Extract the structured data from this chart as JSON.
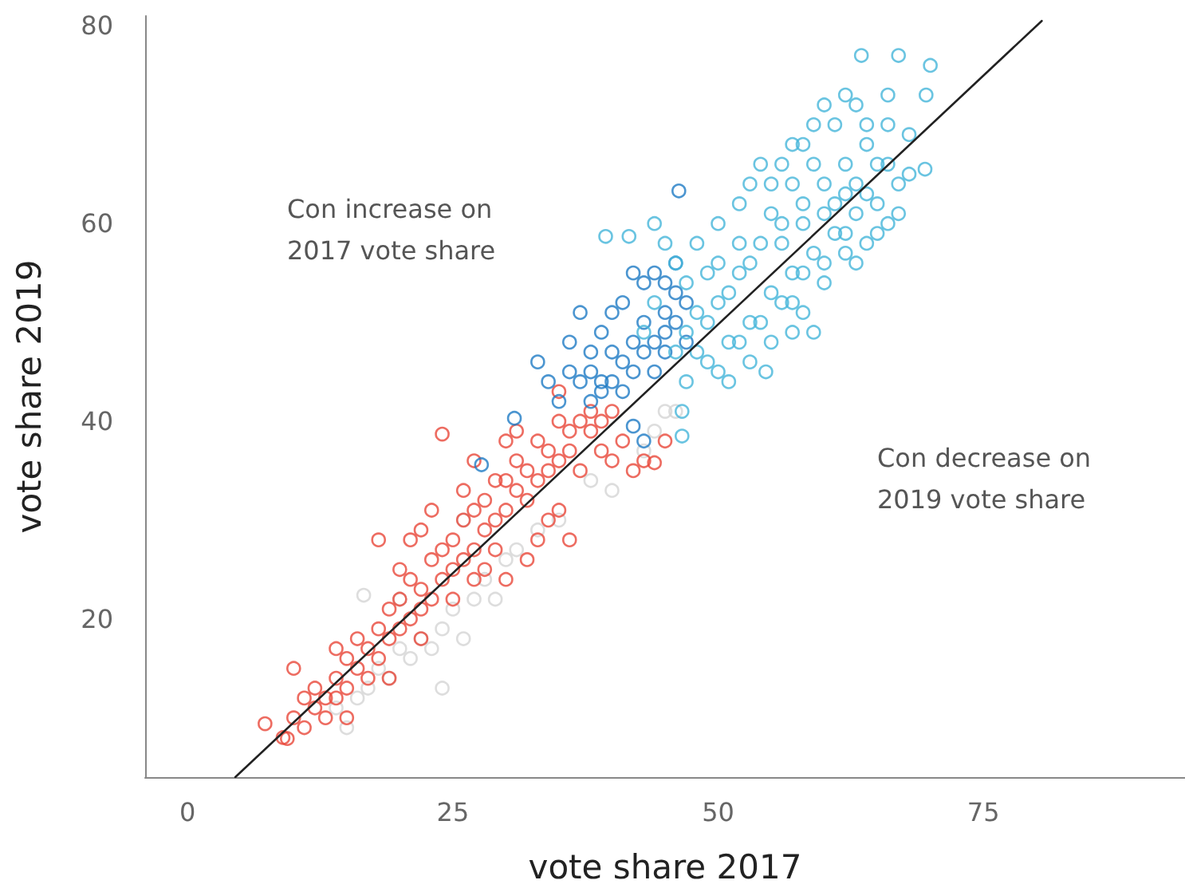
{
  "chart_data": {
    "type": "scatter",
    "xlabel": "vote share 2017",
    "ylabel": "vote share 2019",
    "annotations": [
      "Con increase on\n2017 vote share",
      "Con decrease on\n2019 vote share"
    ],
    "xlim": [
      -4,
      94
    ],
    "ylim": [
      4,
      81
    ],
    "xticks": [
      0,
      25,
      50,
      75
    ],
    "yticks": [
      20,
      40,
      60,
      80
    ],
    "grid": false,
    "marker": "circle",
    "series": [
      {
        "color": "#d5d5d5",
        "x": [
          24,
          16.6,
          45,
          14,
          15,
          16,
          17,
          18,
          19,
          20,
          21,
          22,
          23,
          24,
          25,
          26,
          27,
          28,
          29,
          30,
          31,
          33,
          35,
          38,
          40,
          43,
          44,
          46,
          26,
          20
        ],
        "values": [
          13,
          22.4,
          41,
          11,
          9,
          12,
          13,
          15,
          14,
          17,
          16,
          18,
          17,
          19,
          21,
          18,
          22,
          24,
          22,
          26,
          27,
          29,
          30,
          34,
          33,
          37,
          39,
          41,
          30,
          22
        ]
      },
      {
        "color": "#e8473a",
        "x": [
          7.3,
          9.4,
          24,
          44,
          9,
          10,
          11,
          12,
          12,
          13,
          13,
          14,
          14,
          15,
          15,
          16,
          16,
          17,
          17,
          18,
          18,
          19,
          19,
          20,
          20,
          21,
          21,
          22,
          22,
          23,
          23,
          24,
          24,
          25,
          25,
          26,
          26,
          27,
          27,
          28,
          28,
          29,
          29,
          30,
          30,
          31,
          31,
          32,
          32,
          33,
          33,
          34,
          34,
          35,
          35,
          36,
          36,
          37,
          37,
          38,
          38,
          39,
          39,
          40,
          40,
          41,
          42,
          43,
          45,
          18,
          20,
          22,
          23,
          26,
          29,
          30,
          32,
          33,
          34,
          35,
          36,
          28,
          27,
          25,
          22,
          19,
          15,
          11,
          14,
          10,
          21,
          30,
          31,
          27,
          35
        ],
        "values": [
          9.4,
          7.9,
          38.7,
          35.8,
          8,
          10,
          9,
          11,
          13,
          10,
          12,
          12,
          14,
          13,
          16,
          15,
          18,
          14,
          17,
          16,
          19,
          18,
          21,
          19,
          22,
          20,
          24,
          21,
          23,
          22,
          26,
          24,
          27,
          25,
          28,
          26,
          30,
          27,
          31,
          29,
          32,
          30,
          34,
          31,
          34,
          33,
          36,
          32,
          35,
          34,
          38,
          35,
          37,
          36,
          40,
          37,
          39,
          35,
          40,
          39,
          41,
          37,
          40,
          36,
          41,
          38,
          35,
          36,
          38,
          28,
          25,
          29,
          31,
          33,
          27,
          24,
          26,
          28,
          30,
          31,
          28,
          25,
          24,
          22,
          18,
          14,
          10,
          12,
          17,
          15,
          28,
          38,
          39,
          36,
          43
        ]
      },
      {
        "color": "#1e7bc4",
        "x": [
          46.3,
          27.7,
          30.8,
          33,
          35,
          34,
          36,
          37,
          38,
          38,
          39,
          39,
          40,
          40,
          41,
          41,
          42,
          42,
          43,
          43,
          43,
          44,
          44,
          45,
          45,
          45,
          46,
          46,
          47,
          47,
          44,
          42,
          41,
          36,
          37,
          40,
          42,
          43,
          45,
          46,
          38,
          39
        ],
        "values": [
          63.3,
          35.6,
          40.3,
          46,
          42,
          44,
          45,
          44,
          45,
          47,
          49,
          43,
          44,
          51,
          52,
          46,
          48,
          45,
          47,
          50,
          54,
          55,
          48,
          47,
          49,
          51,
          50,
          53,
          52,
          48,
          45,
          55,
          43,
          48,
          51,
          47,
          39.5,
          38,
          54,
          56,
          42,
          44
        ]
      },
      {
        "color": "#45b5d9",
        "x": [
          63.5,
          67,
          70,
          69.6,
          69.5,
          39.4,
          41.6,
          46.6,
          54.5,
          46.6,
          47,
          48,
          49,
          50,
          51,
          52,
          53,
          54,
          55,
          56,
          57,
          58,
          59,
          60,
          61,
          62,
          63,
          64,
          65,
          66,
          67,
          60,
          62,
          63,
          61,
          58,
          56,
          55,
          57,
          59,
          61,
          63,
          65,
          66,
          64,
          62,
          60,
          58,
          56,
          54,
          52,
          50,
          48,
          47,
          46,
          45,
          44,
          48,
          50,
          52,
          53,
          54,
          50,
          52,
          56,
          58,
          60,
          62,
          64,
          66,
          57,
          59,
          58,
          53,
          51,
          49,
          55,
          57,
          60,
          62,
          63,
          65,
          67,
          68,
          68,
          66,
          64,
          59,
          57,
          55,
          53,
          51,
          49,
          47,
          46,
          44,
          43
        ],
        "values": [
          77,
          77,
          76,
          73,
          65.5,
          58.7,
          58.7,
          38.5,
          45,
          41,
          44,
          47,
          50,
          52,
          48,
          55,
          50,
          58,
          53,
          60,
          55,
          62,
          57,
          64,
          59,
          66,
          61,
          68,
          62,
          70,
          64,
          72,
          73,
          72,
          70,
          68,
          66,
          64,
          64,
          66,
          62,
          64,
          66,
          60,
          58,
          57,
          56,
          55,
          52,
          50,
          48,
          45,
          51,
          54,
          56,
          58,
          60,
          58,
          60,
          62,
          64,
          66,
          56,
          58,
          58,
          60,
          61,
          63,
          63,
          66,
          49,
          49,
          51,
          46,
          44,
          46,
          48,
          52,
          54,
          59,
          56,
          59,
          61,
          65,
          69,
          73,
          70,
          70,
          68,
          61,
          56,
          53,
          55,
          49,
          47,
          52,
          49
        ]
      },
      {
        "type": "line",
        "color": "#222222",
        "marker": "none",
        "x": [
          4.5,
          80.5
        ],
        "values": [
          4,
          80.5
        ]
      }
    ]
  }
}
